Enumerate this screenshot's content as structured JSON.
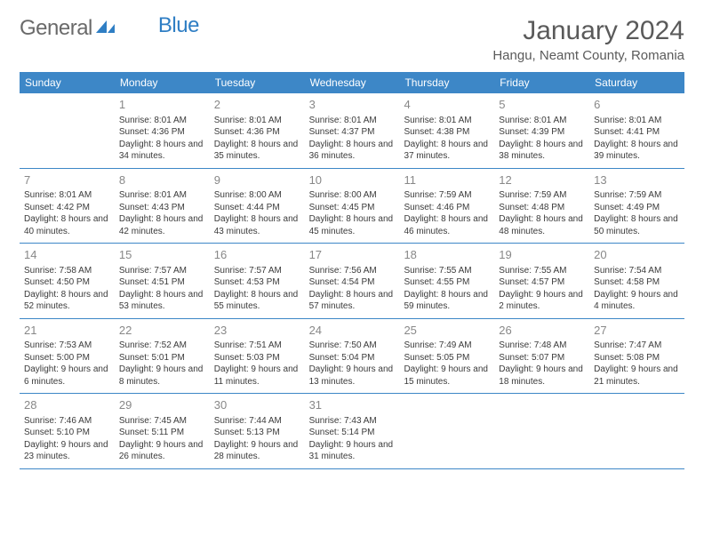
{
  "logo": {
    "text1": "General",
    "text2": "Blue"
  },
  "title": "January 2024",
  "location": "Hangu, Neamt County, Romania",
  "colors": {
    "header_bg": "#3d87c7",
    "header_text": "#ffffff",
    "border": "#3d87c7",
    "daynum": "#888888",
    "body_text": "#3a3a3a",
    "logo_blue": "#2f7ec4"
  },
  "dayNames": [
    "Sunday",
    "Monday",
    "Tuesday",
    "Wednesday",
    "Thursday",
    "Friday",
    "Saturday"
  ],
  "weeks": [
    [
      {
        "n": "",
        "sunrise": "",
        "sunset": "",
        "daylight": ""
      },
      {
        "n": "1",
        "sunrise": "Sunrise: 8:01 AM",
        "sunset": "Sunset: 4:36 PM",
        "daylight": "Daylight: 8 hours and 34 minutes."
      },
      {
        "n": "2",
        "sunrise": "Sunrise: 8:01 AM",
        "sunset": "Sunset: 4:36 PM",
        "daylight": "Daylight: 8 hours and 35 minutes."
      },
      {
        "n": "3",
        "sunrise": "Sunrise: 8:01 AM",
        "sunset": "Sunset: 4:37 PM",
        "daylight": "Daylight: 8 hours and 36 minutes."
      },
      {
        "n": "4",
        "sunrise": "Sunrise: 8:01 AM",
        "sunset": "Sunset: 4:38 PM",
        "daylight": "Daylight: 8 hours and 37 minutes."
      },
      {
        "n": "5",
        "sunrise": "Sunrise: 8:01 AM",
        "sunset": "Sunset: 4:39 PM",
        "daylight": "Daylight: 8 hours and 38 minutes."
      },
      {
        "n": "6",
        "sunrise": "Sunrise: 8:01 AM",
        "sunset": "Sunset: 4:41 PM",
        "daylight": "Daylight: 8 hours and 39 minutes."
      }
    ],
    [
      {
        "n": "7",
        "sunrise": "Sunrise: 8:01 AM",
        "sunset": "Sunset: 4:42 PM",
        "daylight": "Daylight: 8 hours and 40 minutes."
      },
      {
        "n": "8",
        "sunrise": "Sunrise: 8:01 AM",
        "sunset": "Sunset: 4:43 PM",
        "daylight": "Daylight: 8 hours and 42 minutes."
      },
      {
        "n": "9",
        "sunrise": "Sunrise: 8:00 AM",
        "sunset": "Sunset: 4:44 PM",
        "daylight": "Daylight: 8 hours and 43 minutes."
      },
      {
        "n": "10",
        "sunrise": "Sunrise: 8:00 AM",
        "sunset": "Sunset: 4:45 PM",
        "daylight": "Daylight: 8 hours and 45 minutes."
      },
      {
        "n": "11",
        "sunrise": "Sunrise: 7:59 AM",
        "sunset": "Sunset: 4:46 PM",
        "daylight": "Daylight: 8 hours and 46 minutes."
      },
      {
        "n": "12",
        "sunrise": "Sunrise: 7:59 AM",
        "sunset": "Sunset: 4:48 PM",
        "daylight": "Daylight: 8 hours and 48 minutes."
      },
      {
        "n": "13",
        "sunrise": "Sunrise: 7:59 AM",
        "sunset": "Sunset: 4:49 PM",
        "daylight": "Daylight: 8 hours and 50 minutes."
      }
    ],
    [
      {
        "n": "14",
        "sunrise": "Sunrise: 7:58 AM",
        "sunset": "Sunset: 4:50 PM",
        "daylight": "Daylight: 8 hours and 52 minutes."
      },
      {
        "n": "15",
        "sunrise": "Sunrise: 7:57 AM",
        "sunset": "Sunset: 4:51 PM",
        "daylight": "Daylight: 8 hours and 53 minutes."
      },
      {
        "n": "16",
        "sunrise": "Sunrise: 7:57 AM",
        "sunset": "Sunset: 4:53 PM",
        "daylight": "Daylight: 8 hours and 55 minutes."
      },
      {
        "n": "17",
        "sunrise": "Sunrise: 7:56 AM",
        "sunset": "Sunset: 4:54 PM",
        "daylight": "Daylight: 8 hours and 57 minutes."
      },
      {
        "n": "18",
        "sunrise": "Sunrise: 7:55 AM",
        "sunset": "Sunset: 4:55 PM",
        "daylight": "Daylight: 8 hours and 59 minutes."
      },
      {
        "n": "19",
        "sunrise": "Sunrise: 7:55 AM",
        "sunset": "Sunset: 4:57 PM",
        "daylight": "Daylight: 9 hours and 2 minutes."
      },
      {
        "n": "20",
        "sunrise": "Sunrise: 7:54 AM",
        "sunset": "Sunset: 4:58 PM",
        "daylight": "Daylight: 9 hours and 4 minutes."
      }
    ],
    [
      {
        "n": "21",
        "sunrise": "Sunrise: 7:53 AM",
        "sunset": "Sunset: 5:00 PM",
        "daylight": "Daylight: 9 hours and 6 minutes."
      },
      {
        "n": "22",
        "sunrise": "Sunrise: 7:52 AM",
        "sunset": "Sunset: 5:01 PM",
        "daylight": "Daylight: 9 hours and 8 minutes."
      },
      {
        "n": "23",
        "sunrise": "Sunrise: 7:51 AM",
        "sunset": "Sunset: 5:03 PM",
        "daylight": "Daylight: 9 hours and 11 minutes."
      },
      {
        "n": "24",
        "sunrise": "Sunrise: 7:50 AM",
        "sunset": "Sunset: 5:04 PM",
        "daylight": "Daylight: 9 hours and 13 minutes."
      },
      {
        "n": "25",
        "sunrise": "Sunrise: 7:49 AM",
        "sunset": "Sunset: 5:05 PM",
        "daylight": "Daylight: 9 hours and 15 minutes."
      },
      {
        "n": "26",
        "sunrise": "Sunrise: 7:48 AM",
        "sunset": "Sunset: 5:07 PM",
        "daylight": "Daylight: 9 hours and 18 minutes."
      },
      {
        "n": "27",
        "sunrise": "Sunrise: 7:47 AM",
        "sunset": "Sunset: 5:08 PM",
        "daylight": "Daylight: 9 hours and 21 minutes."
      }
    ],
    [
      {
        "n": "28",
        "sunrise": "Sunrise: 7:46 AM",
        "sunset": "Sunset: 5:10 PM",
        "daylight": "Daylight: 9 hours and 23 minutes."
      },
      {
        "n": "29",
        "sunrise": "Sunrise: 7:45 AM",
        "sunset": "Sunset: 5:11 PM",
        "daylight": "Daylight: 9 hours and 26 minutes."
      },
      {
        "n": "30",
        "sunrise": "Sunrise: 7:44 AM",
        "sunset": "Sunset: 5:13 PM",
        "daylight": "Daylight: 9 hours and 28 minutes."
      },
      {
        "n": "31",
        "sunrise": "Sunrise: 7:43 AM",
        "sunset": "Sunset: 5:14 PM",
        "daylight": "Daylight: 9 hours and 31 minutes."
      },
      {
        "n": "",
        "sunrise": "",
        "sunset": "",
        "daylight": ""
      },
      {
        "n": "",
        "sunrise": "",
        "sunset": "",
        "daylight": ""
      },
      {
        "n": "",
        "sunrise": "",
        "sunset": "",
        "daylight": ""
      }
    ]
  ]
}
